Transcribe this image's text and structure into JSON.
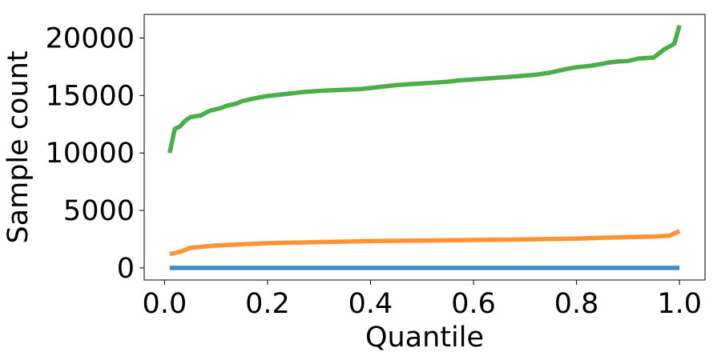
{
  "chart_data": {
    "type": "line",
    "title": "",
    "xlabel": "Quantile",
    "ylabel": "Sample count",
    "xlim": [
      -0.0395,
      1.0495
    ],
    "ylim": [
      -1050,
      22050
    ],
    "xticks": [
      0.0,
      0.2,
      0.4,
      0.6,
      0.8,
      1.0
    ],
    "xtick_labels": [
      "0.0",
      "0.2",
      "0.4",
      "0.6",
      "0.8",
      "1.0"
    ],
    "yticks": [
      0,
      5000,
      10000,
      15000,
      20000
    ],
    "ytick_labels": [
      "0",
      "5000",
      "10000",
      "15000",
      "20000"
    ],
    "grid": false,
    "legend": "none",
    "series": [
      {
        "color": "#1f77b4",
        "x": [
          0.01,
          0.2,
          0.4,
          0.6,
          0.8,
          1.0
        ],
        "y": [
          0,
          0,
          0,
          0,
          0,
          0
        ]
      },
      {
        "color": "#ff7f0e",
        "x": [
          0.01,
          0.03,
          0.05,
          0.1,
          0.15,
          0.2,
          0.3,
          0.4,
          0.5,
          0.6,
          0.7,
          0.8,
          0.85,
          0.9,
          0.95,
          0.98,
          1.0
        ],
        "y": [
          1200,
          1400,
          1750,
          1950,
          2050,
          2150,
          2250,
          2330,
          2380,
          2430,
          2480,
          2550,
          2620,
          2680,
          2720,
          2800,
          3200
        ]
      },
      {
        "color": "#2ca02c",
        "x": [
          0.01,
          0.02,
          0.03,
          0.04,
          0.05,
          0.06,
          0.07,
          0.08,
          0.09,
          0.1,
          0.11,
          0.12,
          0.13,
          0.14,
          0.15,
          0.16,
          0.17,
          0.18,
          0.2,
          0.22,
          0.25,
          0.27,
          0.3,
          0.35,
          0.38,
          0.4,
          0.42,
          0.45,
          0.48,
          0.5,
          0.52,
          0.55,
          0.57,
          0.6,
          0.65,
          0.68,
          0.72,
          0.75,
          0.78,
          0.8,
          0.83,
          0.85,
          0.86,
          0.88,
          0.9,
          0.92,
          0.95,
          0.97,
          0.99,
          1.0
        ],
        "y": [
          10000,
          12100,
          12300,
          12800,
          13100,
          13200,
          13250,
          13500,
          13700,
          13800,
          13900,
          14100,
          14200,
          14300,
          14500,
          14600,
          14700,
          14800,
          14950,
          15050,
          15200,
          15300,
          15400,
          15500,
          15550,
          15650,
          15750,
          15900,
          16000,
          16050,
          16100,
          16200,
          16300,
          16400,
          16550,
          16650,
          16800,
          17000,
          17300,
          17450,
          17600,
          17750,
          17850,
          17950,
          18000,
          18200,
          18300,
          19000,
          19500,
          21100
        ]
      }
    ]
  }
}
